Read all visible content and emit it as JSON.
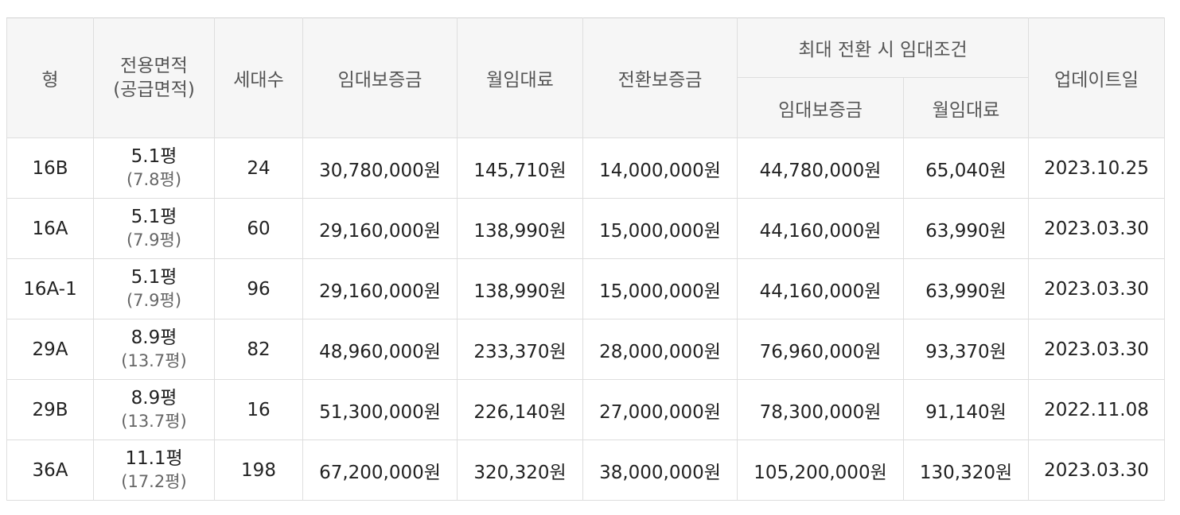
{
  "headers": {
    "type": "형",
    "area_line1": "전용면적",
    "area_line2": "(공급면적)",
    "households": "세대수",
    "deposit": "임대보증금",
    "monthly_rent": "월임대료",
    "conversion_deposit": "전환보증금",
    "max_conversion": "최대 전환 시 임대조건",
    "max_deposit": "임대보증금",
    "max_monthly_rent": "월임대료",
    "updated": "업데이트일"
  },
  "rows": [
    {
      "type": "16B",
      "area": "5.1평",
      "supply": "(7.8평)",
      "households": "24",
      "deposit": "30,780,000원",
      "rent": "145,710원",
      "conv": "14,000,000원",
      "max_deposit": "44,780,000원",
      "max_rent": "65,040원",
      "updated": "2023.10.25"
    },
    {
      "type": "16A",
      "area": "5.1평",
      "supply": "(7.9평)",
      "households": "60",
      "deposit": "29,160,000원",
      "rent": "138,990원",
      "conv": "15,000,000원",
      "max_deposit": "44,160,000원",
      "max_rent": "63,990원",
      "updated": "2023.03.30"
    },
    {
      "type": "16A-1",
      "area": "5.1평",
      "supply": "(7.9평)",
      "households": "96",
      "deposit": "29,160,000원",
      "rent": "138,990원",
      "conv": "15,000,000원",
      "max_deposit": "44,160,000원",
      "max_rent": "63,990원",
      "updated": "2023.03.30"
    },
    {
      "type": "29A",
      "area": "8.9평",
      "supply": "(13.7평)",
      "households": "82",
      "deposit": "48,960,000원",
      "rent": "233,370원",
      "conv": "28,000,000원",
      "max_deposit": "76,960,000원",
      "max_rent": "93,370원",
      "updated": "2023.03.30"
    },
    {
      "type": "29B",
      "area": "8.9평",
      "supply": "(13.7평)",
      "households": "16",
      "deposit": "51,300,000원",
      "rent": "226,140원",
      "conv": "27,000,000원",
      "max_deposit": "78,300,000원",
      "max_rent": "91,140원",
      "updated": "2022.11.08"
    },
    {
      "type": "36A",
      "area": "11.1평",
      "supply": "(17.2평)",
      "households": "198",
      "deposit": "67,200,000원",
      "rent": "320,320원",
      "conv": "38,000,000원",
      "max_deposit": "105,200,000원",
      "max_rent": "130,320원",
      "updated": "2023.03.30"
    }
  ]
}
